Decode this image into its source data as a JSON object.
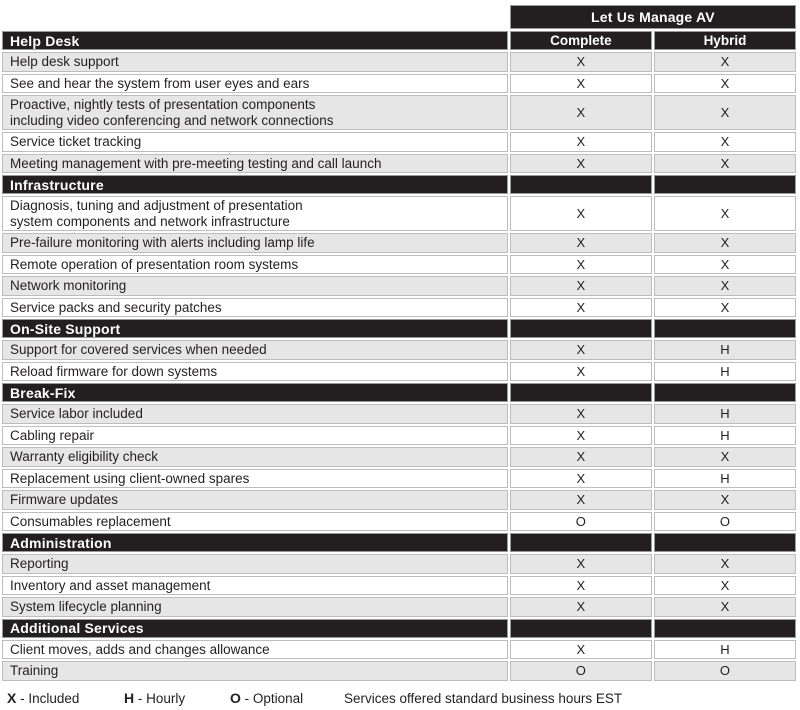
{
  "table": {
    "title": "Let Us Manage AV",
    "columns": {
      "complete": "Complete",
      "hybrid": "Hybrid"
    },
    "sections": [
      {
        "name": "Help Desk",
        "rows": [
          {
            "label": "Help desk support",
            "c": "X",
            "h": "X"
          },
          {
            "label": "See and hear the system from user eyes and ears",
            "c": "X",
            "h": "X"
          },
          {
            "label": "Proactive, nightly tests of presentation components",
            "label2": "including video conferencing and network connections",
            "c": "X",
            "h": "X"
          },
          {
            "label": "Service ticket tracking",
            "c": "X",
            "h": "X"
          },
          {
            "label": "Meeting management with pre-meeting testing and call launch",
            "c": "X",
            "h": "X"
          }
        ]
      },
      {
        "name": "Infrastructure",
        "rows": [
          {
            "label": "Diagnosis, tuning and adjustment of presentation",
            "label2": "system components and network infrastructure",
            "c": "X",
            "h": "X"
          },
          {
            "label": "Pre-failure monitoring with alerts including lamp life",
            "c": "X",
            "h": "X"
          },
          {
            "label": "Remote operation of presentation room systems",
            "c": "X",
            "h": "X"
          },
          {
            "label": "Network monitoring",
            "c": "X",
            "h": "X"
          },
          {
            "label": "Service packs and security patches",
            "c": "X",
            "h": "X"
          }
        ]
      },
      {
        "name": "On-Site Support",
        "rows": [
          {
            "label": "Support for covered services when needed",
            "c": "X",
            "h": "H"
          },
          {
            "label": "Reload firmware for down systems",
            "c": "X",
            "h": "H"
          }
        ]
      },
      {
        "name": "Break-Fix",
        "rows": [
          {
            "label": "Service labor included",
            "c": "X",
            "h": "H"
          },
          {
            "label": "Cabling repair",
            "c": "X",
            "h": "H"
          },
          {
            "label": "Warranty eligibility check",
            "c": "X",
            "h": "X"
          },
          {
            "label": "Replacement using client-owned spares",
            "c": "X",
            "h": "H"
          },
          {
            "label": "Firmware updates",
            "c": "X",
            "h": "X"
          },
          {
            "label": "Consumables replacement",
            "c": "O",
            "h": "O"
          }
        ]
      },
      {
        "name": "Administration",
        "rows": [
          {
            "label": "Reporting",
            "c": "X",
            "h": "X"
          },
          {
            "label": "Inventory and asset management",
            "c": "X",
            "h": "X"
          },
          {
            "label": "System lifecycle planning",
            "c": "X",
            "h": "X"
          }
        ]
      },
      {
        "name": "Additional Services",
        "rows": [
          {
            "label": "Client moves, adds and changes allowance",
            "c": "X",
            "h": "H"
          },
          {
            "label": "Training",
            "c": "O",
            "h": "O"
          }
        ]
      }
    ]
  },
  "legend": {
    "items": [
      {
        "key": "X",
        "desc": "- Included"
      },
      {
        "key": "H",
        "desc": "- Hourly"
      },
      {
        "key": "O",
        "desc": "- Optional"
      }
    ],
    "note": "Services offered standard business hours EST"
  },
  "colors": {
    "header_black": "#231f20",
    "row_shade_gray": "#e6e6e6",
    "cell_border": "#bdbdbd",
    "header_text": "#ffffff"
  }
}
